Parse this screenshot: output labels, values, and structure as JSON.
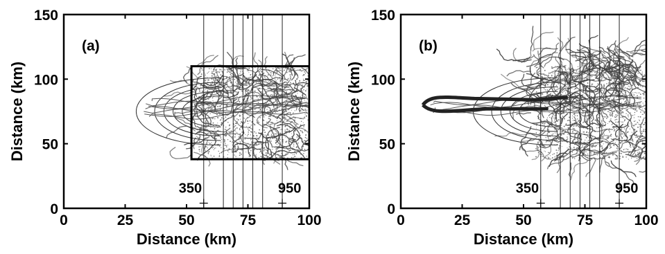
{
  "chart_data": [
    {
      "type": "line",
      "panel_label": "(a)",
      "xlabel": "Distance (km)",
      "ylabel": "Distance (km)",
      "xlim": [
        0,
        100
      ],
      "ylim": [
        0,
        150
      ],
      "x_ticks": [
        0,
        25,
        50,
        75,
        100
      ],
      "y_ticks": [
        0,
        50,
        100,
        150
      ],
      "grid": false,
      "vertical_lines_x": [
        57,
        65,
        69,
        73,
        77,
        81,
        89
      ],
      "markers": [
        {
          "label": "350",
          "x": 57,
          "y": 4
        },
        {
          "label": "950",
          "x": 89,
          "y": 4
        }
      ],
      "boxed_region": {
        "x": [
          52,
          100
        ],
        "y": [
          38,
          110
        ]
      },
      "contours_apex_x": [
        20,
        30,
        35,
        40,
        45
      ]
    },
    {
      "type": "line",
      "panel_label": "(b)",
      "xlabel": "Distance (km)",
      "ylabel": "Distance (km)",
      "xlim": [
        0,
        100
      ],
      "ylim": [
        0,
        150
      ],
      "x_ticks": [
        0,
        25,
        50,
        75,
        100
      ],
      "y_ticks": [
        0,
        50,
        100,
        150
      ],
      "grid": false,
      "vertical_lines_x": [
        57,
        65,
        69,
        73,
        77,
        81,
        89
      ],
      "markers": [
        {
          "label": "350",
          "x": 57,
          "y": 4
        },
        {
          "label": "950",
          "x": 89,
          "y": 4
        }
      ],
      "contours_apex_x": [
        20,
        30,
        35,
        40,
        45
      ]
    }
  ]
}
